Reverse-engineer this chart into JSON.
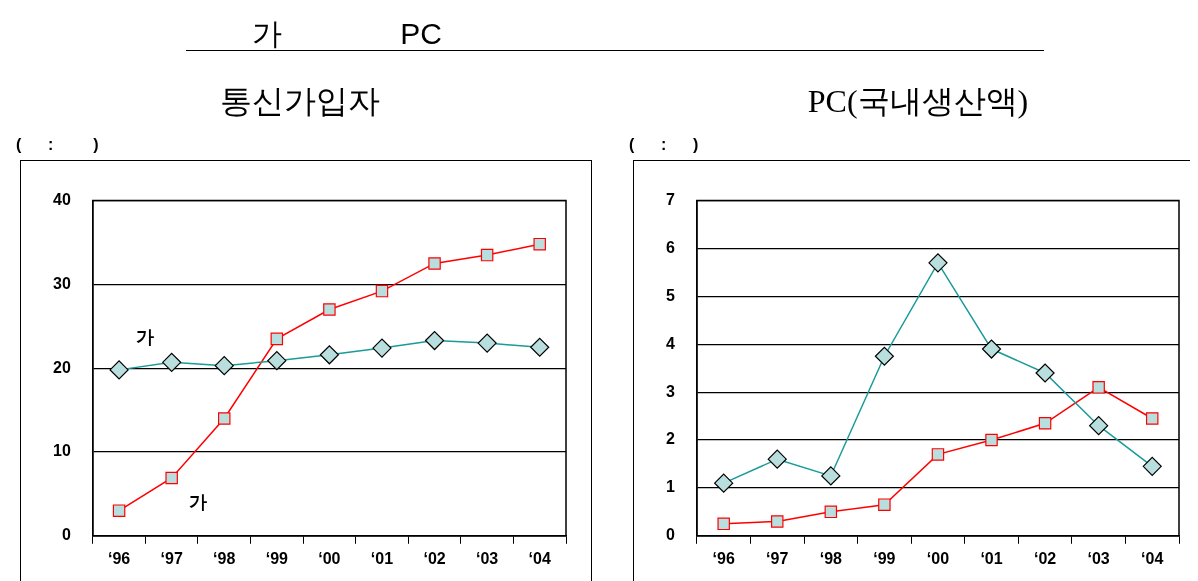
{
  "chart_data": [
    {
      "type": "other",
      "title": "가 PC"
    },
    {
      "type": "line",
      "title": "통신가입자",
      "annotations": [
        "(      :         )"
      ],
      "categories": [
        "‘96",
        "‘97",
        "‘98",
        "‘99",
        "‘00",
        "‘01",
        "‘02",
        "‘03",
        "‘04"
      ],
      "ylim": [
        0,
        40
      ],
      "yticks": [
        0,
        10,
        20,
        30,
        40
      ],
      "grid": "y",
      "legend": false,
      "series": [
        {
          "name": "가",
          "color": "#1a9a9a",
          "marker": "diamond",
          "values": [
            19.8,
            20.7,
            20.3,
            20.9,
            21.6,
            22.4,
            23.3,
            23.0,
            22.5
          ]
        },
        {
          "name": "가",
          "color": "#ff0000",
          "marker": "square",
          "values": [
            3.0,
            6.9,
            14.0,
            23.5,
            27.0,
            29.2,
            32.5,
            33.5,
            34.8
          ]
        }
      ]
    },
    {
      "type": "line",
      "title": "PC(국내생산액)",
      "annotations": [
        "(      :      )"
      ],
      "categories": [
        "‘96",
        "‘97",
        "‘98",
        "‘99",
        "‘00",
        "‘01",
        "‘02",
        "‘03",
        "‘04"
      ],
      "ylim": [
        0,
        7
      ],
      "yticks": [
        0,
        1,
        2,
        3,
        4,
        5,
        6,
        7
      ],
      "grid": "y",
      "legend": false,
      "series": [
        {
          "color": "#1a9a9a",
          "marker": "diamond",
          "values": [
            1.1,
            1.6,
            1.25,
            3.75,
            5.7,
            3.9,
            3.4,
            2.3,
            1.45
          ]
        },
        {
          "color": "#ff0000",
          "marker": "square",
          "values": [
            0.25,
            0.3,
            0.5,
            0.65,
            1.7,
            2.0,
            2.35,
            3.1,
            2.45
          ]
        }
      ]
    }
  ]
}
